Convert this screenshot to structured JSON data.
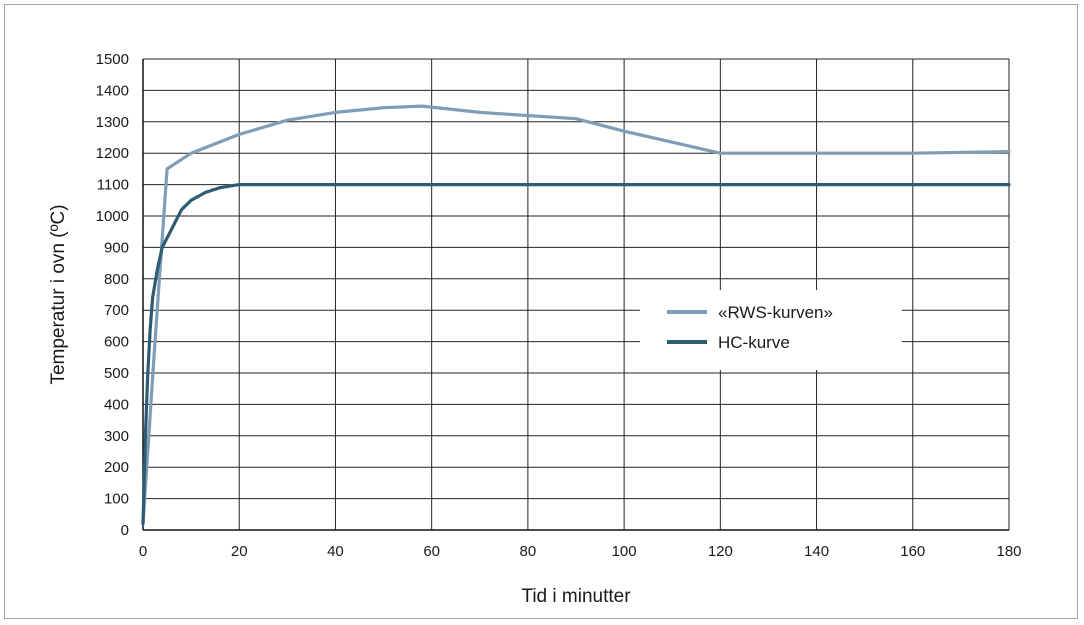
{
  "chart_data": {
    "type": "line",
    "title": "",
    "xlabel": "Tid i minutter",
    "ylabel": "Temperatur i ovn (ºC)",
    "xlim": [
      0,
      180
    ],
    "ylim": [
      0,
      1500
    ],
    "x_ticks": [
      0,
      20,
      40,
      60,
      80,
      100,
      120,
      140,
      160,
      180
    ],
    "y_ticks": [
      0,
      100,
      200,
      300,
      400,
      500,
      600,
      700,
      800,
      900,
      1000,
      1100,
      1200,
      1300,
      1400,
      1500
    ],
    "grid": true,
    "legend_position": "right-middle",
    "series": [
      {
        "name": "«RWS-kurven»",
        "color": "#7f9db4",
        "points": [
          [
            0,
            20
          ],
          [
            2.5,
            600
          ],
          [
            5,
            1150
          ],
          [
            10,
            1200
          ],
          [
            20,
            1260
          ],
          [
            30,
            1305
          ],
          [
            40,
            1330
          ],
          [
            50,
            1345
          ],
          [
            58,
            1350
          ],
          [
            70,
            1330
          ],
          [
            90,
            1310
          ],
          [
            100,
            1270
          ],
          [
            120,
            1200
          ],
          [
            140,
            1200
          ],
          [
            160,
            1200
          ],
          [
            180,
            1205
          ]
        ]
      },
      {
        "name": "HC-kurve",
        "color": "#2d5b74",
        "points": [
          [
            0,
            20
          ],
          [
            0.5,
            300
          ],
          [
            1,
            500
          ],
          [
            1.5,
            640
          ],
          [
            2,
            740
          ],
          [
            3,
            830
          ],
          [
            4,
            900
          ],
          [
            6,
            960
          ],
          [
            8,
            1020
          ],
          [
            10,
            1050
          ],
          [
            13,
            1075
          ],
          [
            16,
            1090
          ],
          [
            20,
            1100
          ],
          [
            30,
            1100
          ],
          [
            60,
            1100
          ],
          [
            100,
            1100
          ],
          [
            140,
            1100
          ],
          [
            180,
            1100
          ]
        ]
      }
    ]
  }
}
